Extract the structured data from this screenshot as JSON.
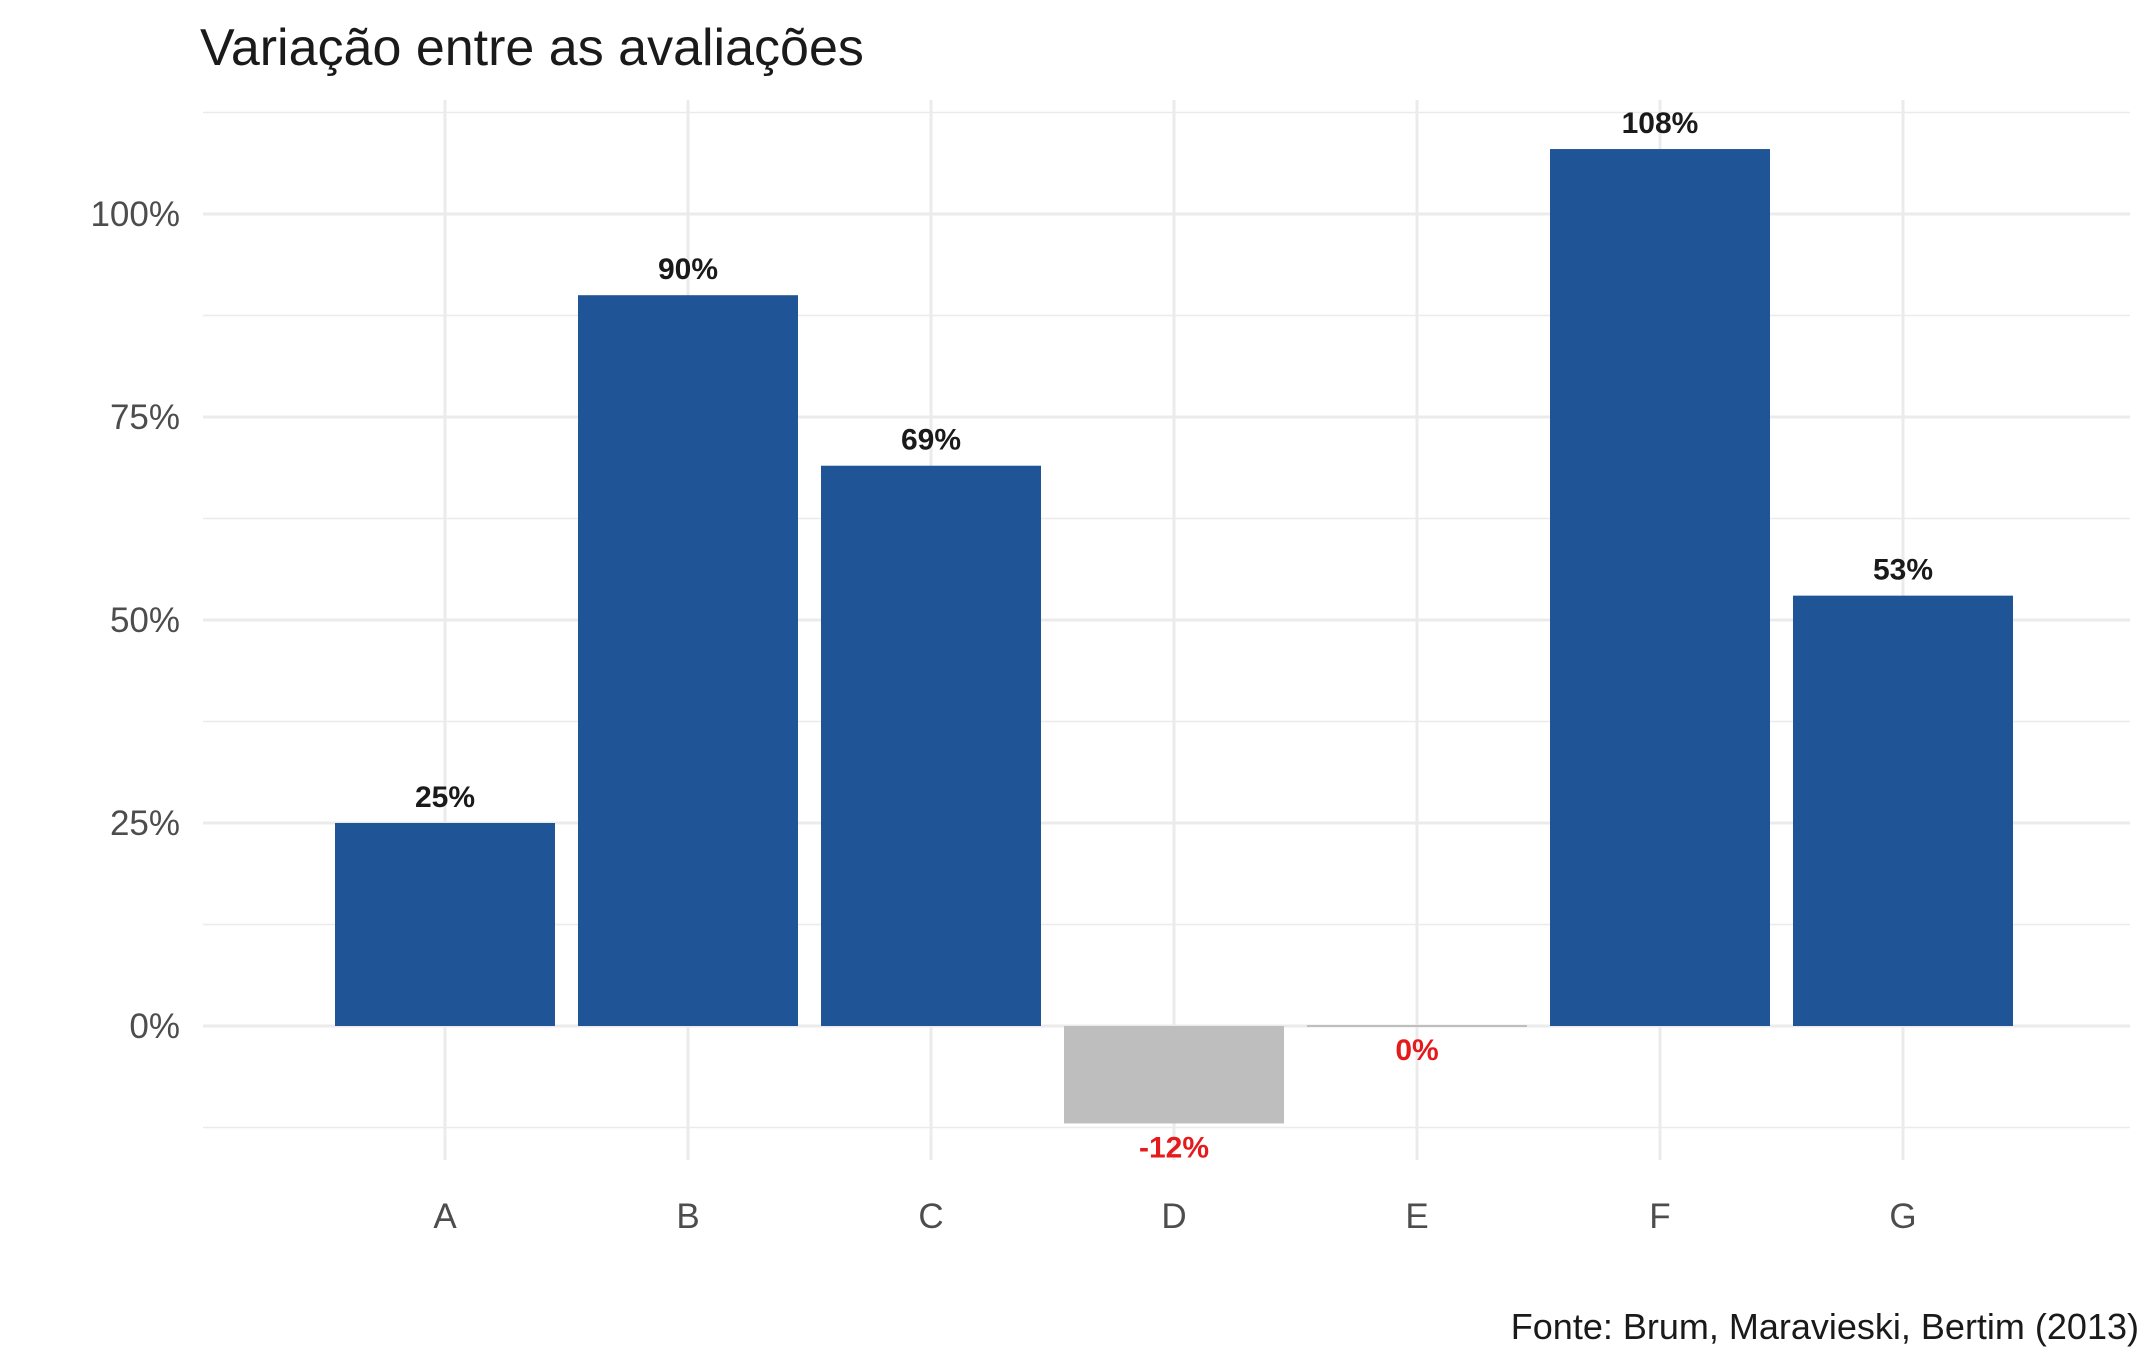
{
  "chart_data": {
    "type": "bar",
    "title": "Variação entre as avaliações",
    "caption": "Fonte: Brum, Maravieski, Bertim (2013)",
    "xlabel": "",
    "ylabel": "",
    "categories": [
      "A",
      "B",
      "C",
      "D",
      "E",
      "F",
      "G"
    ],
    "values": [
      25,
      90,
      69,
      -12,
      0,
      108,
      53
    ],
    "data_labels": [
      "25%",
      "90%",
      "69%",
      "-12%",
      "0%",
      "108%",
      "53%"
    ],
    "y_ticks": [
      0,
      25,
      50,
      75,
      100
    ],
    "y_tick_labels": [
      "0%",
      "25%",
      "50%",
      "75%",
      "100%"
    ],
    "ylim": [
      -12.8,
      113.5
    ],
    "grid": true,
    "legend": "none",
    "colors": {
      "positive_bar": "#1F5597",
      "nonpositive_bar": "#BEBEBE",
      "positive_label": "#1a1a1a",
      "nonpositive_label": "#E41A1C",
      "grid": "#EBEBEB"
    }
  }
}
